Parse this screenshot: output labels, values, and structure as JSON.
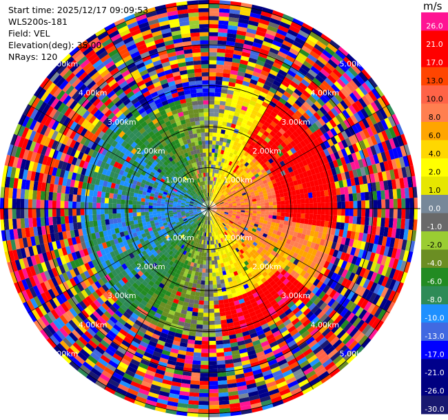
{
  "header": {
    "start_time": "Start time: 2025/12/17 09:09:53",
    "instrument": "WLS200s-181",
    "field": "Field: VEL",
    "elevation": "Elevation(deg): 35.00",
    "nrays": "NRays: 120"
  },
  "colorbar": {
    "unit": "m/s",
    "ticks": [
      "26.0",
      "21.0",
      "17.0",
      "13.0",
      "10.0",
      "8.0",
      "6.0",
      "4.0",
      "2.0",
      "1.0",
      "0.0",
      "-1.0",
      "-2.0",
      "-4.0",
      "-6.0",
      "-8.0",
      "-10.0",
      "-13.0",
      "-17.0",
      "-21.0",
      "-26.0",
      "-30.0"
    ],
    "colors": [
      "#ff1493",
      "#ff0000",
      "#ff0000",
      "#ff4500",
      "#ff6347",
      "#ff7f50",
      "#ffa500",
      "#ffd700",
      "#ffff00",
      "#e6e600",
      "#778899",
      "#696969",
      "#9acd32",
      "#6b8e23",
      "#228b22",
      "#2e8b57",
      "#1e90ff",
      "#4169e1",
      "#0000ff",
      "#00008b",
      "#000080",
      "#191970"
    ]
  },
  "chart_data": {
    "type": "heatmap",
    "projection": "polar PPI",
    "field": "VEL",
    "units": "m/s",
    "nrays": 120,
    "range_rings_km": [
      "1.00km",
      "2.00km",
      "3.00km",
      "4.00km",
      "5.00km"
    ],
    "azimuth_spokes_deg": [
      0,
      30,
      60,
      90,
      120,
      150,
      180,
      210,
      240,
      270,
      300,
      330
    ],
    "value_range": [
      -30,
      30
    ],
    "pattern_description_values": {
      "near_east_sector_mean": 8,
      "near_west_sector_mean": -6,
      "northeast_band_mean": 21,
      "southeast_band_mean": 22,
      "north_band_mean": -17
    }
  }
}
